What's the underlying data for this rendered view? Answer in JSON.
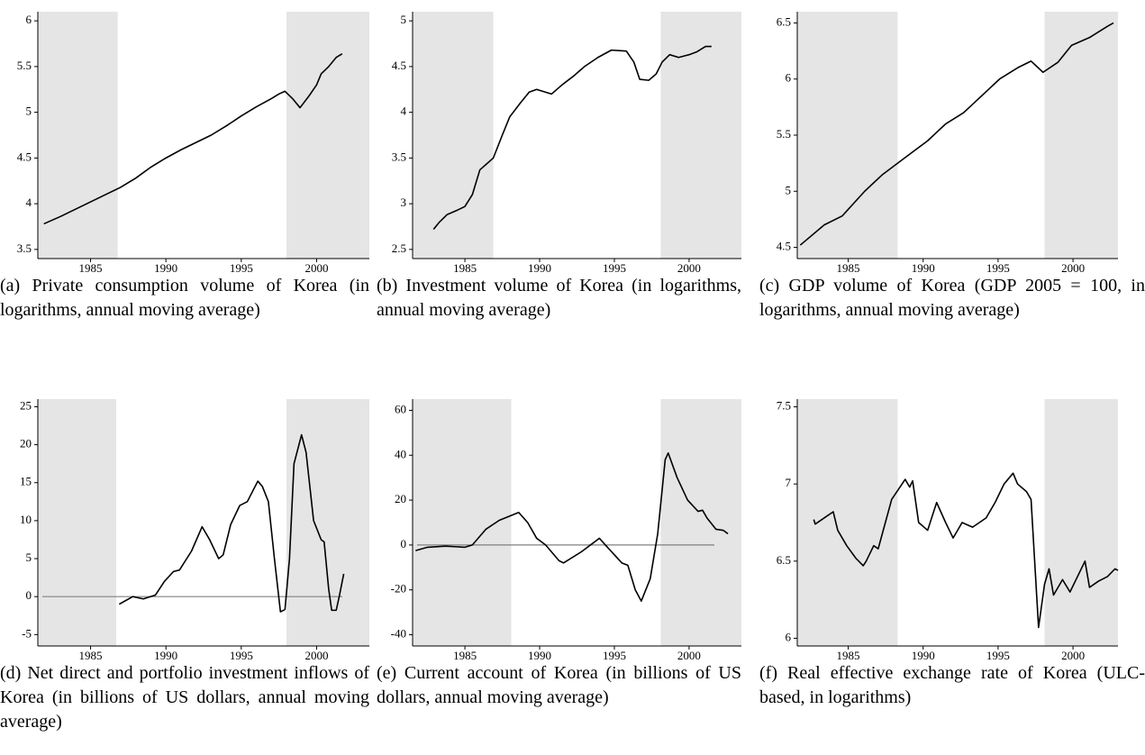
{
  "chart_data": [
    {
      "type": "line",
      "caption": "(a) Private consumption volume of Korea (in logarithms, annual moving average)",
      "x": [
        1981.9,
        1983,
        1984,
        1985,
        1986,
        1987,
        1988,
        1989,
        1990,
        1991,
        1992,
        1993,
        1994,
        1995,
        1996,
        1997,
        1997.5,
        1997.9,
        1998.4,
        1998.9,
        1999.5,
        2000,
        2000.3,
        2000.8,
        2001.3,
        2001.7
      ],
      "values": [
        3.78,
        3.86,
        3.94,
        4.02,
        4.1,
        4.18,
        4.28,
        4.4,
        4.5,
        4.59,
        4.67,
        4.75,
        4.85,
        4.96,
        5.06,
        5.15,
        5.2,
        5.23,
        5.15,
        5.05,
        5.18,
        5.3,
        5.42,
        5.5,
        5.6,
        5.64
      ],
      "color": "#000000",
      "xlim": [
        1981.5,
        2003.5
      ],
      "xticks": [
        1985,
        1990,
        1995,
        2000
      ],
      "ylim": [
        3.4,
        6.1
      ],
      "yticks": [
        3.5,
        4,
        4.5,
        5,
        5.5,
        6
      ],
      "shaded_regions": [
        [
          1981.5,
          1986.8
        ],
        [
          1998,
          2003.5
        ]
      ],
      "shade_color": "#e5e5e5"
    },
    {
      "type": "line",
      "caption": "(b) Investment volume of Korea (in logarithms, annual moving average)",
      "x": [
        1982.9,
        1983.3,
        1983.8,
        1984.5,
        1985,
        1985.5,
        1986,
        1986.9,
        1987.5,
        1988,
        1988.7,
        1989.3,
        1989.8,
        1990.8,
        1991.5,
        1992.3,
        1993,
        1993.9,
        1994.8,
        1995.8,
        1996.3,
        1996.7,
        1997.3,
        1997.8,
        1998.2,
        1998.7,
        1999.3,
        2000,
        2000.5,
        2001.1,
        2001.5
      ],
      "values": [
        2.72,
        2.8,
        2.88,
        2.93,
        2.97,
        3.1,
        3.37,
        3.5,
        3.75,
        3.95,
        4.1,
        4.22,
        4.25,
        4.2,
        4.3,
        4.4,
        4.5,
        4.6,
        4.68,
        4.67,
        4.55,
        4.36,
        4.35,
        4.42,
        4.55,
        4.63,
        4.6,
        4.63,
        4.66,
        4.72,
        4.72
      ],
      "color": "#000000",
      "xlim": [
        1981.5,
        2003.5
      ],
      "xticks": [
        1985,
        1990,
        1995,
        2000
      ],
      "ylim": [
        2.4,
        5.1
      ],
      "yticks": [
        2.5,
        3,
        3.5,
        4,
        4.5,
        5
      ],
      "shaded_regions": [
        [
          1981.5,
          1986.9
        ],
        [
          1998.1,
          2003.5
        ]
      ],
      "shade_color": "#e5e5e5"
    },
    {
      "type": "line",
      "caption": "(c) GDP volume of Korea (GDP 2005 = 100, in logarithms, annual moving average)",
      "x": [
        1981.8,
        1983.4,
        1984.6,
        1986.1,
        1987.3,
        1988.8,
        1990.3,
        1991.5,
        1992.7,
        1993.9,
        1995.1,
        1996.3,
        1997.2,
        1998,
        1999,
        1999.9,
        2001.1,
        2002.3,
        2002.7
      ],
      "values": [
        4.52,
        4.7,
        4.78,
        5.0,
        5.15,
        5.3,
        5.45,
        5.6,
        5.7,
        5.85,
        6.0,
        6.1,
        6.16,
        6.06,
        6.15,
        6.3,
        6.37,
        6.47,
        6.5
      ],
      "color": "#000000",
      "xlim": [
        1981.6,
        2003.0
      ],
      "xticks": [
        1985,
        1990,
        1995,
        2000
      ],
      "ylim": [
        4.4,
        6.6
      ],
      "yticks": [
        4.5,
        5,
        5.5,
        6,
        6.5
      ],
      "shaded_regions": [
        [
          1981.6,
          1988.3
        ],
        [
          1998.1,
          2003.0
        ]
      ],
      "shade_color": "#e5e5e5"
    },
    {
      "type": "line",
      "caption": "(d) Net direct and portfolio investment inflows of Korea (in billions of US dollars, annual moving average)",
      "x": [
        1986.9,
        1987.8,
        1988.5,
        1989.3,
        1989.9,
        1990.5,
        1990.9,
        1991.7,
        1992.4,
        1992.9,
        1993.5,
        1993.8,
        1994.3,
        1994.9,
        1995.4,
        1996.1,
        1996.4,
        1996.8,
        1997.2,
        1997.6,
        1997.9,
        1998.2,
        1998.5,
        1999.0,
        1999.3,
        1999.8,
        2000.3,
        2000.5,
        2000.8,
        2001.0,
        2001.3,
        2001.5,
        2001.8
      ],
      "values": [
        -1,
        0,
        -0.3,
        0.2,
        2,
        3.3,
        3.5,
        6,
        9.2,
        7.5,
        5,
        5.5,
        9.5,
        12,
        12.5,
        15.2,
        14.5,
        12.5,
        5,
        -2,
        -1.7,
        5,
        17.5,
        21.3,
        19,
        10,
        7.5,
        7.2,
        1,
        -1.8,
        -1.8,
        0,
        3
      ],
      "color": "#000000",
      "xlim": [
        1981.5,
        2003.5
      ],
      "xticks": [
        1985,
        1990,
        1995,
        2000
      ],
      "ylim": [
        -6.5,
        26
      ],
      "yticks": [
        -5,
        0,
        5,
        10,
        15,
        20,
        25
      ],
      "shaded_regions": [
        [
          1981.5,
          1986.7
        ],
        [
          1998,
          2003.5
        ]
      ],
      "shade_color": "#e5e5e5",
      "hline": 0,
      "hline_color": "#808080"
    },
    {
      "type": "line",
      "caption": "(e) Current account of Korea (in billions of US dollars, annual moving average)",
      "x": [
        1981.7,
        1982.5,
        1983.7,
        1985,
        1985.5,
        1986.4,
        1987.3,
        1988.6,
        1989.2,
        1989.8,
        1990.4,
        1991.3,
        1991.6,
        1992.8,
        1994,
        1994.4,
        1995.5,
        1995.9,
        1996.4,
        1996.8,
        1997.4,
        1997.9,
        1998.4,
        1998.6,
        1999.2,
        1999.9,
        2000.6,
        2000.9,
        2001.2,
        2001.8,
        2002.3,
        2002.6
      ],
      "values": [
        -2.5,
        -1,
        -0.5,
        -1,
        0,
        7,
        11,
        14.5,
        10,
        3,
        0,
        -7,
        -8,
        -3,
        3,
        0,
        -8,
        -9,
        -20,
        -25,
        -15,
        5,
        38,
        41,
        30,
        20,
        15,
        15.5,
        12,
        7,
        6.5,
        5
      ],
      "color": "#000000",
      "xlim": [
        1981.5,
        2003.5
      ],
      "xticks": [
        1985,
        1990,
        1995,
        2000
      ],
      "ylim": [
        -45,
        65
      ],
      "yticks": [
        -40,
        -20,
        0,
        20,
        40,
        60
      ],
      "shaded_regions": [
        [
          1981.5,
          1988.1
        ],
        [
          1998.1,
          2003.5
        ]
      ],
      "shade_color": "#e5e5e5",
      "hline": 0,
      "hline_color": "#808080"
    },
    {
      "type": "line",
      "caption": "(f) Real effective exchange rate of Korea (ULC-based, in logarithms)",
      "x": [
        1982.7,
        1982.8,
        1983.7,
        1984.0,
        1984.3,
        1984.9,
        1985.5,
        1986.0,
        1986.2,
        1986.7,
        1987.0,
        1987.9,
        1988.8,
        1989.1,
        1989.3,
        1989.7,
        1990.3,
        1990.9,
        1991.5,
        1992.0,
        1992.6,
        1993.3,
        1994.2,
        1994.8,
        1995.4,
        1996.0,
        1996.3,
        1996.9,
        1997.2,
        1997.7,
        1998.1,
        1998.4,
        1998.7,
        1999.3,
        1999.8,
        2000.4,
        2000.8,
        2001.1,
        2001.7,
        2002.3,
        2002.8,
        2003.0
      ],
      "values": [
        6.77,
        6.74,
        6.8,
        6.82,
        6.7,
        6.6,
        6.52,
        6.47,
        6.5,
        6.6,
        6.58,
        6.9,
        7.03,
        6.98,
        7.02,
        6.75,
        6.7,
        6.88,
        6.75,
        6.65,
        6.75,
        6.72,
        6.78,
        6.88,
        7.0,
        7.07,
        7.0,
        6.95,
        6.9,
        6.07,
        6.35,
        6.45,
        6.28,
        6.38,
        6.3,
        6.42,
        6.5,
        6.33,
        6.37,
        6.4,
        6.45,
        6.44
      ],
      "color": "#000000",
      "xlim": [
        1981.6,
        2003.0
      ],
      "xticks": [
        1985,
        1990,
        1995,
        2000
      ],
      "ylim": [
        5.95,
        7.55
      ],
      "yticks": [
        6,
        6.5,
        7,
        7.5
      ],
      "shaded_regions": [
        [
          1981.6,
          1988.3
        ],
        [
          1998.1,
          2003.0
        ]
      ],
      "shade_color": "#e5e5e5"
    }
  ]
}
